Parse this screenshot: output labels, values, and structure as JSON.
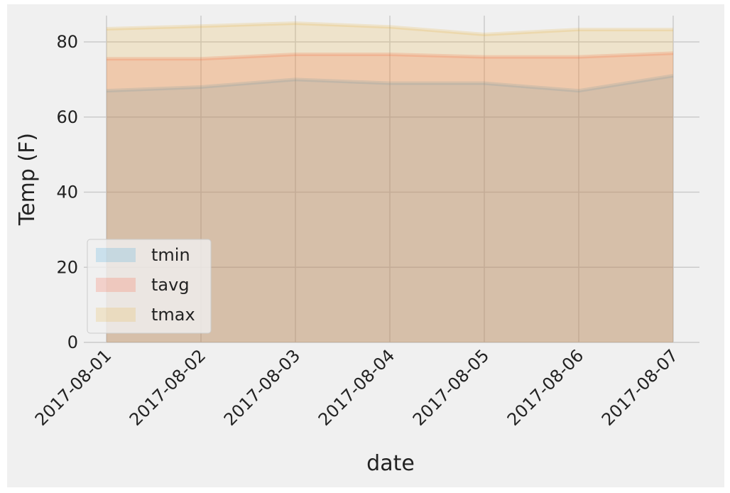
{
  "chart_data": {
    "type": "area",
    "stacked": false,
    "title": "",
    "xlabel": "date",
    "ylabel": "Temp (F)",
    "x": [
      "2017-08-01",
      "2017-08-02",
      "2017-08-03",
      "2017-08-04",
      "2017-08-05",
      "2017-08-06",
      "2017-08-07"
    ],
    "ylim": [
      0,
      87
    ],
    "yticks": [
      0,
      20,
      40,
      60,
      80
    ],
    "grid": true,
    "legend": "lower-left",
    "series": [
      {
        "name": "tmin",
        "values": [
          67.0,
          68.0,
          70.0,
          69.0,
          69.0,
          67.0,
          71.0
        ],
        "color": "#30a2da"
      },
      {
        "name": "tavg",
        "values": [
          75.5,
          75.5,
          76.7,
          76.7,
          76.0,
          76.0,
          77.0
        ],
        "color": "#fc4f30"
      },
      {
        "name": "tmax",
        "values": [
          83.5,
          84.2,
          85.0,
          84.0,
          82.0,
          83.3,
          83.3
        ],
        "color": "#e5ae38"
      }
    ]
  }
}
